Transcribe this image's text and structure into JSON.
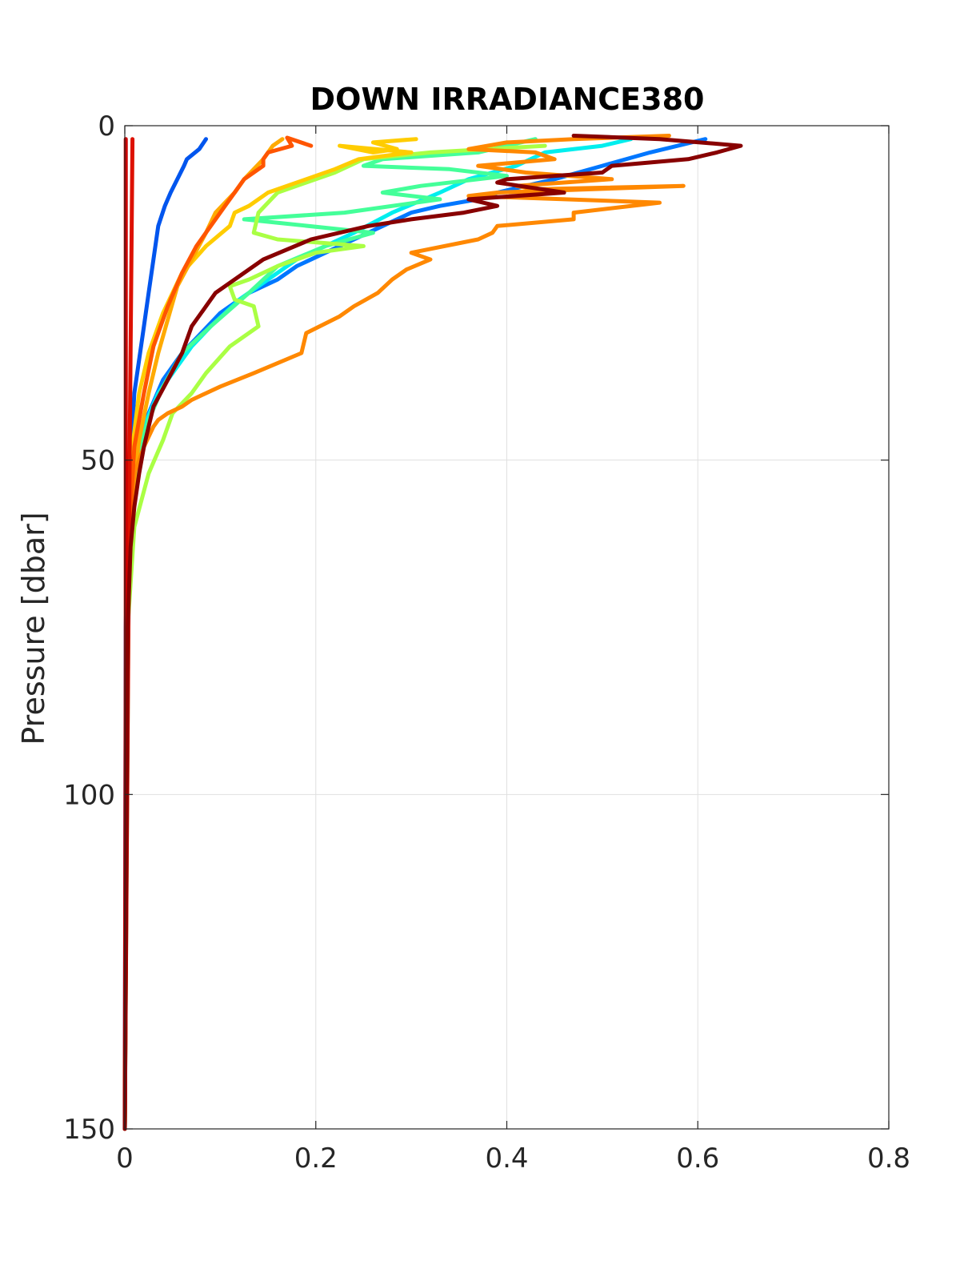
{
  "chart_data": {
    "type": "line",
    "title": "DOWN IRRADIANCE380",
    "xlabel": "",
    "ylabel": "Pressure [dbar]",
    "xlim": [
      0,
      0.8
    ],
    "ylim": [
      0,
      150
    ],
    "y_reversed": true,
    "grid": true,
    "xticks": [
      0,
      0.2,
      0.4,
      0.6,
      0.8
    ],
    "xtick_labels": [
      "0",
      "0.2",
      "0.4",
      "0.6",
      "0.8"
    ],
    "yticks": [
      0,
      50,
      100,
      150
    ],
    "ytick_labels": [
      "0",
      "50",
      "100",
      "150"
    ],
    "series": [
      {
        "color": "#0055ee",
        "x": [
          0.085,
          0.078,
          0.065,
          0.062,
          0.055,
          0.048,
          0.042,
          0.035,
          0.03,
          0.025,
          0.02,
          0.015,
          0.01,
          0.006,
          0.003,
          0.001,
          0.0
        ],
        "y": [
          2,
          3.5,
          5,
          6,
          8,
          10,
          12,
          15,
          20,
          25,
          30,
          35,
          40,
          50,
          60,
          75,
          150
        ]
      },
      {
        "color": "#0077ff",
        "x": [
          0.608,
          0.55,
          0.5,
          0.45,
          0.39,
          0.37,
          0.33,
          0.3,
          0.27,
          0.24,
          0.21,
          0.18,
          0.16,
          0.13,
          0.1,
          0.08,
          0.06,
          0.04,
          0.025,
          0.01,
          0.003,
          0.0
        ],
        "y": [
          2,
          4,
          6,
          8,
          10,
          11,
          12,
          13,
          15,
          17,
          19,
          21,
          23,
          25,
          28,
          31,
          34,
          38,
          43,
          50,
          70,
          150
        ]
      },
      {
        "color": "#00eeee",
        "x": [
          0.53,
          0.5,
          0.44,
          0.41,
          0.36,
          0.33,
          0.28,
          0.24,
          0.18,
          0.15,
          0.12,
          0.09,
          0.07,
          0.05,
          0.035,
          0.02,
          0.01,
          0.003,
          0.0
        ],
        "y": [
          2,
          3,
          4,
          6,
          8,
          10,
          13,
          16,
          20,
          23,
          26,
          30,
          33,
          37,
          40,
          45,
          52,
          70,
          150
        ]
      },
      {
        "color": "#44ff99",
        "x": [
          0.43,
          0.37,
          0.27,
          0.25,
          0.34,
          0.4,
          0.31,
          0.27,
          0.33,
          0.23,
          0.125,
          0.26,
          0.21,
          0.16,
          0.13,
          0.09,
          0.06,
          0.04,
          0.025,
          0.012,
          0.004,
          0.0
        ],
        "y": [
          2,
          4,
          5,
          6,
          6.5,
          7.5,
          9,
          10,
          11,
          13,
          14,
          16,
          18,
          21,
          25,
          30,
          34,
          39,
          44,
          50,
          68,
          150
        ]
      },
      {
        "color": "#aaff44",
        "x": [
          0.44,
          0.32,
          0.25,
          0.22,
          0.16,
          0.14,
          0.135,
          0.16,
          0.25,
          0.2,
          0.16,
          0.13,
          0.11,
          0.115,
          0.135,
          0.14,
          0.11,
          0.085,
          0.07,
          0.05,
          0.04,
          0.025,
          0.01,
          0.003,
          0.0
        ],
        "y": [
          3,
          4,
          5,
          7,
          10,
          13,
          16,
          17,
          18,
          19,
          21,
          23,
          24,
          26,
          27,
          30,
          33,
          37,
          40,
          43,
          47,
          52,
          60,
          75,
          150
        ]
      },
      {
        "color": "#ffcc00",
        "x": [
          0.305,
          0.26,
          0.285,
          0.26,
          0.225,
          0.3,
          0.245,
          0.22,
          0.19,
          0.15,
          0.13,
          0.115,
          0.11,
          0.085,
          0.06,
          0.04,
          0.025,
          0.015,
          0.008,
          0.003,
          0.0
        ],
        "y": [
          2,
          2.5,
          3.5,
          4,
          3,
          4,
          5,
          6.5,
          8,
          10,
          12,
          13,
          15,
          18,
          22,
          28,
          34,
          40,
          48,
          60,
          150
        ]
      },
      {
        "color": "#ffaa00",
        "x": [
          0.165,
          0.155,
          0.145,
          0.125,
          0.115,
          0.095,
          0.085,
          0.07,
          0.055,
          0.045,
          0.035,
          0.025,
          0.015,
          0.008,
          0.003,
          0.0
        ],
        "y": [
          2,
          3,
          5,
          8,
          10,
          13,
          16,
          20,
          24,
          29,
          34,
          40,
          47,
          55,
          70,
          150
        ]
      },
      {
        "color": "#ff8800",
        "x": [
          0.57,
          0.47,
          0.4,
          0.36,
          0.43,
          0.45,
          0.37,
          0.42,
          0.51,
          0.46,
          0.41,
          0.43,
          0.585,
          0.39,
          0.36,
          0.56,
          0.47,
          0.47,
          0.39,
          0.385,
          0.37,
          0.3,
          0.32,
          0.295,
          0.28,
          0.265,
          0.24,
          0.225,
          0.19,
          0.185,
          0.135,
          0.1,
          0.085,
          0.07,
          0.06,
          0.045,
          0.035,
          0.03,
          0.02,
          0.01,
          0.005,
          0.002,
          0.0
        ],
        "y": [
          1.5,
          2,
          2.5,
          3.5,
          4,
          5,
          6,
          7,
          8,
          8.5,
          9,
          9.5,
          9,
          10,
          10.5,
          11.5,
          13,
          14,
          15,
          16,
          17,
          19,
          20,
          21.5,
          23,
          25,
          27,
          28.5,
          31,
          34,
          37,
          39,
          40,
          41,
          42,
          43,
          44,
          45,
          48,
          52,
          60,
          75,
          150
        ]
      },
      {
        "color": "#ff5500",
        "x": [
          0.195,
          0.17,
          0.175,
          0.15,
          0.145,
          0.145,
          0.125,
          0.115,
          0.105,
          0.09,
          0.075,
          0.06,
          0.045,
          0.03,
          0.02,
          0.01,
          0.004,
          0.0
        ],
        "y": [
          3,
          1.8,
          3,
          4,
          5,
          6,
          8,
          10,
          12,
          15,
          18,
          22,
          27,
          33,
          40,
          48,
          62,
          150
        ]
      },
      {
        "color": "#dd1100",
        "x": [
          0.008,
          0.005,
          0.002,
          0.0
        ],
        "y": [
          2,
          50,
          110,
          150
        ]
      },
      {
        "color": "#cc0000",
        "x": [
          0.001,
          0.001,
          0.0
        ],
        "y": [
          2,
          80,
          150
        ]
      },
      {
        "color": "#880000",
        "x": [
          0.47,
          0.56,
          0.645,
          0.62,
          0.59,
          0.51,
          0.5,
          0.4,
          0.39,
          0.46,
          0.36,
          0.39,
          0.355,
          0.3,
          0.255,
          0.195,
          0.145,
          0.095,
          0.07,
          0.06,
          0.045,
          0.03,
          0.025,
          0.02,
          0.015,
          0.01,
          0.006,
          0.003,
          0.0
        ],
        "y": [
          1.5,
          2,
          3,
          4,
          5,
          6,
          7,
          8,
          8.5,
          10,
          11,
          12,
          13,
          14,
          15,
          17,
          20,
          25,
          30,
          34,
          38,
          42,
          45,
          48,
          52,
          57,
          63,
          75,
          150
        ]
      }
    ]
  }
}
